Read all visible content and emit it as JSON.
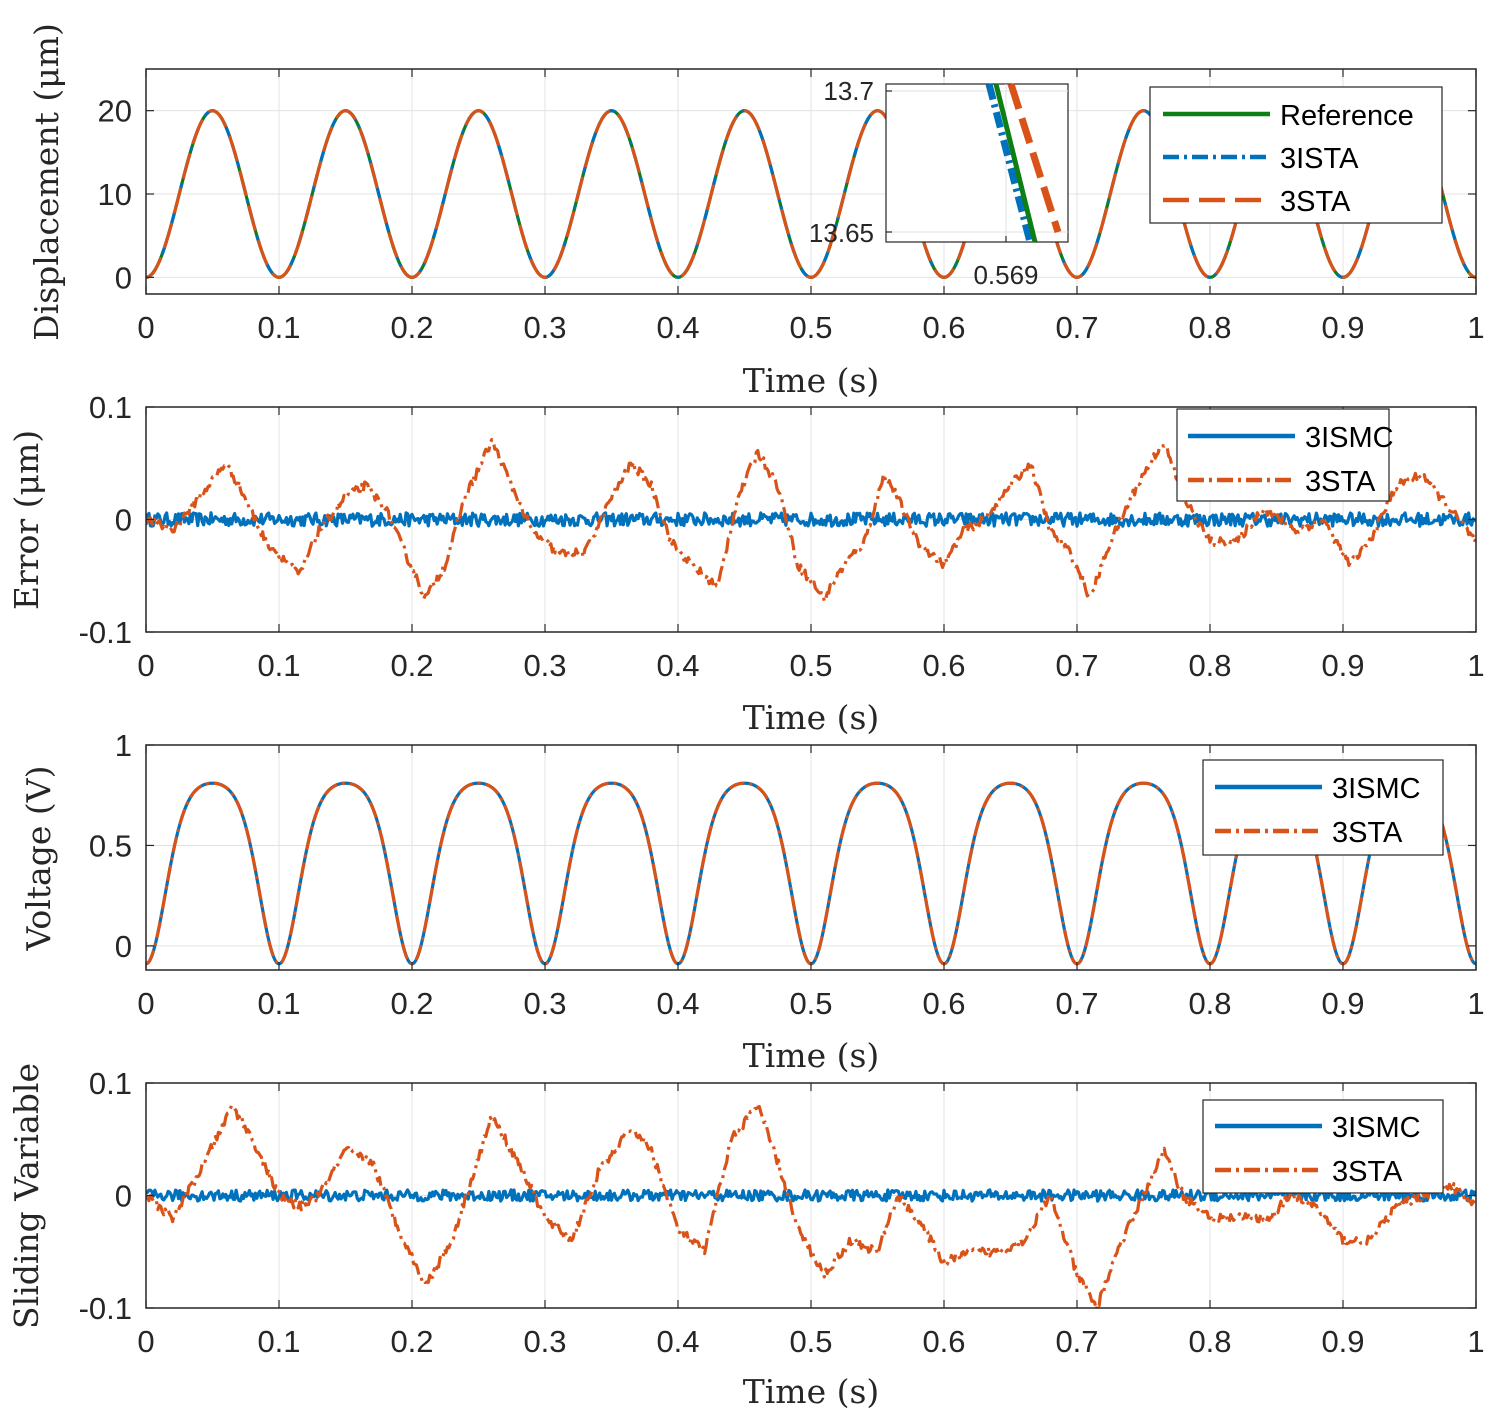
{
  "chart_data": [
    {
      "type": "line",
      "id": "p1",
      "ylabel": "Displacement (μm)",
      "xlabel": "Time (s)",
      "xlim": [
        0,
        1
      ],
      "ylim": [
        -2,
        25
      ],
      "xticks": [
        "0",
        "0.1",
        "0.2",
        "0.3",
        "0.4",
        "0.5",
        "0.6",
        "0.7",
        "0.8",
        "0.9",
        "1"
      ],
      "yticks": [
        {
          "v": 0,
          "label": "0"
        },
        {
          "v": 10,
          "label": "10"
        },
        {
          "v": 20,
          "label": "20"
        }
      ],
      "grid": true,
      "legend_position": "top-right",
      "series": [
        {
          "name": "Reference",
          "color": "#0e7f14",
          "style": "solid",
          "signal": "10 - 10*cos(2*pi*10*t)"
        },
        {
          "name": "3ISTA",
          "color": "#0072bd",
          "style": "dashdot",
          "signal": "10 - 10*cos(2*pi*10*t)"
        },
        {
          "name": "3STA",
          "color": "#d95319",
          "style": "dashed",
          "signal": "10 - 10*cos(2*pi*10*t)"
        }
      ],
      "inset": {
        "xtick_label": "0.569",
        "yticks": [
          {
            "v": 13.7,
            "label": "13.7"
          },
          {
            "v": 13.65,
            "label": "13.65"
          }
        ]
      }
    },
    {
      "type": "line",
      "id": "p2",
      "ylabel": "Error (μm)",
      "xlabel": "Time (s)",
      "xlim": [
        0,
        1
      ],
      "ylim": [
        -0.1,
        0.1
      ],
      "xticks": [
        "0",
        "0.1",
        "0.2",
        "0.3",
        "0.4",
        "0.5",
        "0.6",
        "0.7",
        "0.8",
        "0.9",
        "1"
      ],
      "yticks": [
        {
          "v": -0.1,
          "label": "-0.1"
        },
        {
          "v": 0,
          "label": "0"
        },
        {
          "v": 0.1,
          "label": "0.1"
        }
      ],
      "grid": true,
      "legend_position": "top-right",
      "series": [
        {
          "name": "3ISMC",
          "color": "#0072bd",
          "style": "solid",
          "noise": 0.006,
          "x": [
            0,
            1
          ],
          "y": [
            0,
            0
          ]
        },
        {
          "name": "3STA",
          "color": "#d95319",
          "style": "dashdot",
          "noise": 0.004,
          "x": [
            0,
            0.02,
            0.04,
            0.06,
            0.07,
            0.09,
            0.1,
            0.115,
            0.13,
            0.15,
            0.165,
            0.18,
            0.195,
            0.21,
            0.225,
            0.24,
            0.26,
            0.275,
            0.29,
            0.31,
            0.33,
            0.35,
            0.365,
            0.38,
            0.395,
            0.41,
            0.43,
            0.445,
            0.46,
            0.475,
            0.49,
            0.51,
            0.525,
            0.54,
            0.555,
            0.565,
            0.58,
            0.6,
            0.615,
            0.63,
            0.65,
            0.665,
            0.68,
            0.695,
            0.71,
            0.725,
            0.745,
            0.765,
            0.78,
            0.8,
            0.82,
            0.84,
            0.865,
            0.885,
            0.905,
            0.92,
            0.94,
            0.96,
            0.98,
            1.0
          ],
          "y": [
            0,
            -0.01,
            0.02,
            0.05,
            0.03,
            -0.02,
            -0.03,
            -0.05,
            -0.01,
            0.02,
            0.03,
            0.01,
            -0.03,
            -0.07,
            -0.04,
            0.02,
            0.07,
            0.03,
            -0.01,
            -0.03,
            -0.03,
            0.02,
            0.05,
            0.03,
            -0.02,
            -0.04,
            -0.06,
            0.02,
            0.06,
            0.03,
            -0.04,
            -0.07,
            -0.04,
            -0.02,
            0.04,
            0.02,
            -0.02,
            -0.04,
            -0.01,
            0.0,
            0.03,
            0.05,
            -0.01,
            -0.03,
            -0.07,
            -0.02,
            0.03,
            0.07,
            0.02,
            -0.02,
            -0.02,
            0.01,
            -0.01,
            0.0,
            -0.04,
            -0.02,
            0.03,
            0.04,
            0.01,
            -0.02
          ]
        }
      ]
    },
    {
      "type": "line",
      "id": "p3",
      "ylabel": "Voltage (V)",
      "xlabel": "Time (s)",
      "xlim": [
        0,
        1
      ],
      "ylim": [
        -0.12,
        1.0
      ],
      "xticks": [
        "0",
        "0.1",
        "0.2",
        "0.3",
        "0.4",
        "0.5",
        "0.6",
        "0.7",
        "0.8",
        "0.9",
        "1"
      ],
      "yticks": [
        {
          "v": 0,
          "label": "0"
        },
        {
          "v": 0.5,
          "label": "0.5"
        },
        {
          "v": 1,
          "label": "1"
        }
      ],
      "grid": true,
      "legend_position": "top-right",
      "series": [
        {
          "name": "3ISMC",
          "color": "#0072bd",
          "style": "solid",
          "signal": "0.36 - 0.45*cos(2*pi*10*t + 0.55*sin(2*pi*10*t))"
        },
        {
          "name": "3STA",
          "color": "#d95319",
          "style": "dashdot",
          "signal": "0.36 - 0.45*cos(2*pi*10*t + 0.55*sin(2*pi*10*t))"
        }
      ]
    },
    {
      "type": "line",
      "id": "p4",
      "ylabel": "Sliding Variable",
      "xlabel": "Time (s)",
      "xlim": [
        0,
        1
      ],
      "ylim": [
        -0.1,
        0.1
      ],
      "xticks": [
        "0",
        "0.1",
        "0.2",
        "0.3",
        "0.4",
        "0.5",
        "0.6",
        "0.7",
        "0.8",
        "0.9",
        "1"
      ],
      "yticks": [
        {
          "v": -0.1,
          "label": "-0.1"
        },
        {
          "v": 0,
          "label": "0"
        },
        {
          "v": 0.1,
          "label": "0.1"
        }
      ],
      "grid": true,
      "legend_position": "top-right",
      "series": [
        {
          "name": "3ISMC",
          "color": "#0072bd",
          "style": "solid",
          "noise": 0.005,
          "x": [
            0,
            1
          ],
          "y": [
            0,
            0
          ]
        },
        {
          "name": "3STA",
          "color": "#d95319",
          "style": "dashdot",
          "noise": 0.004,
          "x": [
            0,
            0.02,
            0.04,
            0.065,
            0.08,
            0.1,
            0.115,
            0.13,
            0.15,
            0.17,
            0.19,
            0.21,
            0.23,
            0.26,
            0.28,
            0.3,
            0.32,
            0.34,
            0.365,
            0.38,
            0.4,
            0.42,
            0.44,
            0.46,
            0.475,
            0.49,
            0.51,
            0.53,
            0.55,
            0.565,
            0.58,
            0.6,
            0.62,
            0.64,
            0.66,
            0.68,
            0.7,
            0.715,
            0.73,
            0.75,
            0.765,
            0.78,
            0.8,
            0.82,
            0.845,
            0.86,
            0.88,
            0.9,
            0.92,
            0.94,
            0.96,
            0.98,
            1.0
          ],
          "y": [
            0,
            -0.02,
            0.02,
            0.08,
            0.05,
            0.0,
            -0.01,
            0.0,
            0.04,
            0.03,
            -0.03,
            -0.08,
            -0.04,
            0.07,
            0.03,
            -0.02,
            -0.04,
            0.02,
            0.06,
            0.04,
            -0.03,
            -0.05,
            0.05,
            0.08,
            0.03,
            -0.03,
            -0.07,
            -0.04,
            -0.05,
            0.0,
            -0.02,
            -0.06,
            -0.05,
            -0.05,
            -0.04,
            0.0,
            -0.07,
            -0.1,
            -0.05,
            0.0,
            0.04,
            0.0,
            -0.02,
            -0.02,
            -0.02,
            0.0,
            -0.01,
            -0.04,
            -0.04,
            -0.01,
            0.0,
            0.01,
            -0.01
          ]
        }
      ]
    }
  ]
}
